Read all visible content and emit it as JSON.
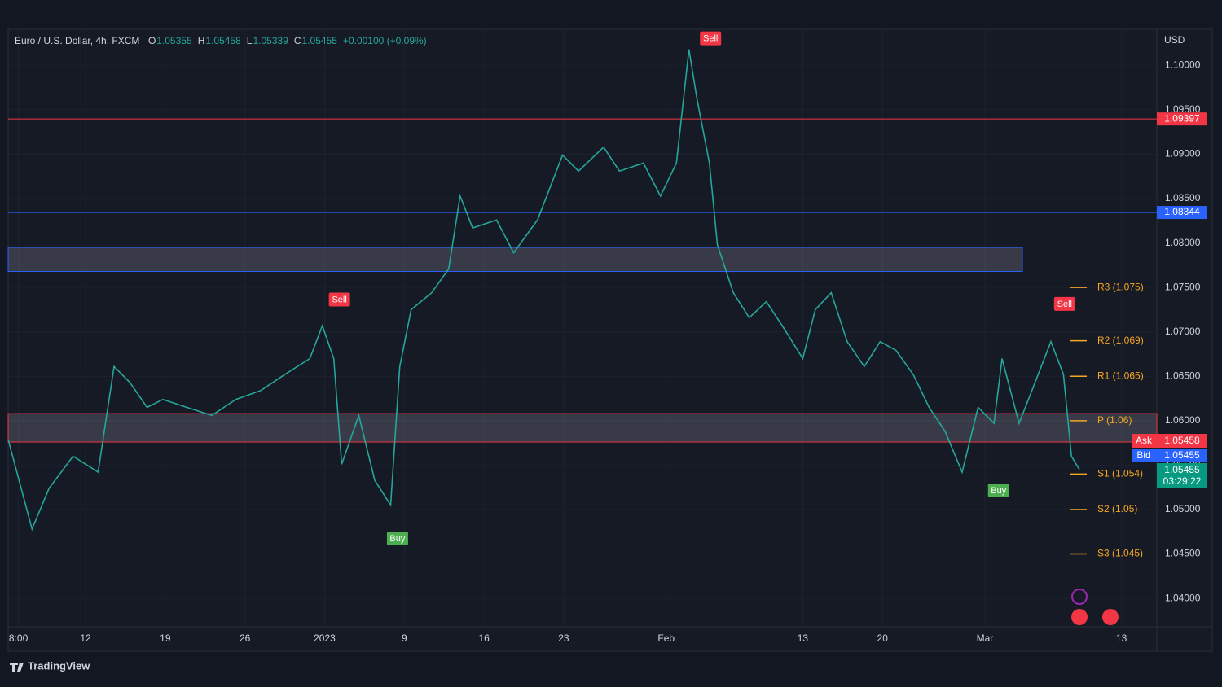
{
  "header": {
    "symbol": "Euro / U.S. Dollar, 4h, FXCM",
    "ohlc": [
      {
        "label": "O",
        "value": "1.05355"
      },
      {
        "label": "H",
        "value": "1.05458"
      },
      {
        "label": "L",
        "value": "1.05339"
      },
      {
        "label": "C",
        "value": "1.05455"
      }
    ],
    "change": "+0.00100 (+0.09%)"
  },
  "quote": {
    "ask_label": "Ask",
    "ask": "1.05458",
    "bid_label": "Bid",
    "bid": "1.05455",
    "last": "1.05455",
    "countdown": "03:29:22"
  },
  "brand": "TradingView",
  "chart_data": {
    "type": "line",
    "currency": "USD",
    "color": "#26a69a",
    "x": [
      -6.8,
      -4.7,
      -3.2,
      -1.1,
      1.1,
      2.5,
      3.9,
      5.4,
      6.8,
      8.9,
      11.1,
      13.2,
      15.4,
      17.5,
      19.7,
      20.8,
      21.8,
      22.5,
      24.0,
      25.4,
      26.8,
      27.6,
      28.6,
      30.4,
      31.9,
      32.9,
      34.0,
      36.1,
      37.6,
      39.7,
      41.9,
      43.3,
      45.5,
      46.9,
      49.0,
      50.5,
      51.9,
      53.0,
      53.7,
      54.8,
      55.5,
      56.9,
      58.3,
      59.8,
      61.2,
      63.0,
      64.1,
      65.5,
      66.9,
      68.4,
      69.8,
      71.2,
      72.7,
      74.1,
      75.5,
      77.0,
      78.4,
      79.8,
      80.5,
      82.0,
      83.4,
      84.8,
      85.9,
      86.6,
      87.3
    ],
    "values": [
      1.0579,
      1.0478,
      1.0524,
      1.056,
      1.0542,
      1.0661,
      1.0643,
      1.0615,
      1.0624,
      1.0615,
      1.0606,
      1.0624,
      1.0634,
      1.0652,
      1.067,
      1.0707,
      1.067,
      1.0551,
      1.0606,
      1.0533,
      1.0505,
      1.0661,
      1.0725,
      1.0744,
      1.0771,
      1.0853,
      1.0817,
      1.0826,
      1.0789,
      1.0826,
      1.0899,
      1.0881,
      1.0908,
      1.0881,
      1.089,
      1.0853,
      1.089,
      1.1018,
      1.0963,
      1.089,
      1.0798,
      1.0744,
      1.0716,
      1.0734,
      1.0707,
      1.067,
      1.0725,
      1.0744,
      1.0689,
      1.0661,
      1.0689,
      1.0679,
      1.0652,
      1.0615,
      1.0588,
      1.0542,
      1.0615,
      1.0597,
      1.067,
      1.0597,
      1.0643,
      1.0689,
      1.0652,
      1.056,
      1.0545
    ],
    "xlim": [
      -6.8,
      94.1
    ],
    "xticks": [
      {
        "value": -5.9,
        "label": "8:00"
      },
      {
        "value": 0,
        "label": "12"
      },
      {
        "value": 7,
        "label": "19"
      },
      {
        "value": 14,
        "label": "26"
      },
      {
        "value": 21,
        "label": "2023"
      },
      {
        "value": 28,
        "label": "9"
      },
      {
        "value": 35,
        "label": "16"
      },
      {
        "value": 42,
        "label": "23"
      },
      {
        "value": 51,
        "label": "Feb"
      },
      {
        "value": 63,
        "label": "13"
      },
      {
        "value": 70,
        "label": "20"
      },
      {
        "value": 79,
        "label": "Mar"
      },
      {
        "value": 91,
        "label": "13"
      }
    ],
    "ylim": [
      1.0368,
      1.1037
    ],
    "yticks": [
      {
        "value": 1.04,
        "label": "1.04000"
      },
      {
        "value": 1.045,
        "label": "1.04500"
      },
      {
        "value": 1.05,
        "label": "1.05000"
      },
      {
        "value": 1.055,
        "label": "1.05500"
      },
      {
        "value": 1.06,
        "label": "1.06000"
      },
      {
        "value": 1.065,
        "label": "1.06500"
      },
      {
        "value": 1.07,
        "label": "1.07000"
      },
      {
        "value": 1.075,
        "label": "1.07500"
      },
      {
        "value": 1.08,
        "label": "1.08000"
      },
      {
        "value": 1.085,
        "label": "1.08500"
      },
      {
        "value": 1.09,
        "label": "1.09000"
      },
      {
        "value": 1.095,
        "label": "1.09500"
      },
      {
        "value": 1.1,
        "label": "1.10000"
      }
    ],
    "grid": true,
    "levels": [
      {
        "value": 1.09397,
        "label": "1.09397",
        "color": "#f23645"
      },
      {
        "value": 1.08344,
        "label": "1.08344",
        "color": "#2962ff"
      }
    ],
    "zones": [
      {
        "from": 1.0768,
        "to": 1.0795,
        "color": "#2962ff"
      },
      {
        "from": 1.0576,
        "to": 1.0608,
        "color": "#f23645"
      }
    ],
    "pivots": [
      {
        "value": 1.075,
        "label": "R3 (1.075)"
      },
      {
        "value": 1.069,
        "label": "R2 (1.069)"
      },
      {
        "value": 1.065,
        "label": "R1 (1.065)"
      },
      {
        "value": 1.06,
        "label": "P (1.06)"
      },
      {
        "value": 1.054,
        "label": "S1 (1.054)"
      },
      {
        "value": 1.05,
        "label": "S2 (1.05)"
      },
      {
        "value": 1.045,
        "label": "S3 (1.045)"
      }
    ],
    "signals": [
      {
        "label": "Sell",
        "x": 54.9,
        "value": 1.103
      },
      {
        "label": "Sell",
        "x": 22.3,
        "value": 1.0736
      },
      {
        "label": "Buy",
        "x": 27.4,
        "value": 1.0467
      },
      {
        "label": "Buy",
        "x": 80.2,
        "value": 1.0521
      },
      {
        "label": "Sell",
        "x": 86.0,
        "value": 1.0731
      }
    ]
  }
}
